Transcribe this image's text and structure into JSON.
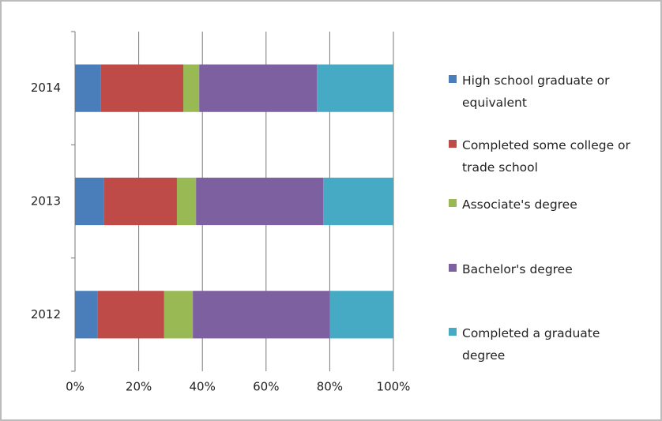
{
  "chart_data": {
    "type": "stacked_bar_horizontal",
    "categories": [
      "2012",
      "2013",
      "2014"
    ],
    "series": [
      {
        "name": "High school graduate or equivalent",
        "color": "#4a7ebb",
        "values": [
          7,
          9,
          8
        ]
      },
      {
        "name": "Completed some college or trade school",
        "color": "#be4b48",
        "values": [
          21,
          23,
          26
        ]
      },
      {
        "name": "Associate's degree",
        "color": "#98b954",
        "values": [
          9,
          6,
          5
        ]
      },
      {
        "name": "Bachelor's degree",
        "color": "#7d60a0",
        "values": [
          43,
          40,
          37
        ]
      },
      {
        "name": "Completed a graduate degree",
        "color": "#46aac5",
        "values": [
          20,
          22,
          24
        ]
      }
    ],
    "xlim": [
      0,
      100
    ],
    "xticks": [
      {
        "value": 0,
        "label": "0%"
      },
      {
        "value": 20,
        "label": "20%"
      },
      {
        "value": 40,
        "label": "40%"
      },
      {
        "value": 60,
        "label": "60%"
      },
      {
        "value": 80,
        "label": "80%"
      },
      {
        "value": 100,
        "label": "100%"
      }
    ],
    "grid": true,
    "legend": "right"
  }
}
